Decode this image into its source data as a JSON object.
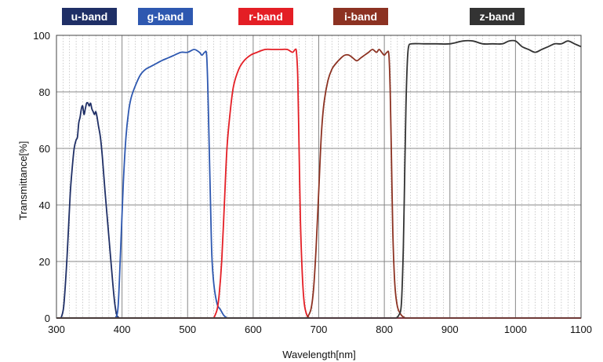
{
  "chart_data": {
    "type": "line",
    "title": "",
    "xlabel": "Wavelength[nm]",
    "ylabel": "Transmittance[%]",
    "xlim": [
      300,
      1100
    ],
    "ylim": [
      0,
      100
    ],
    "x_ticks": [
      300,
      400,
      500,
      600,
      700,
      800,
      900,
      1000,
      1100
    ],
    "y_ticks": [
      0,
      20,
      40,
      60,
      80,
      100
    ],
    "minor_x_step": 10,
    "grid": true,
    "legend_position": "top",
    "series": [
      {
        "name": "u-band",
        "color": "#1f2f66",
        "points": [
          [
            307,
            0
          ],
          [
            311,
            4
          ],
          [
            315,
            17
          ],
          [
            318,
            30
          ],
          [
            321,
            44
          ],
          [
            324,
            53
          ],
          [
            327,
            60
          ],
          [
            330,
            63
          ],
          [
            332,
            64
          ],
          [
            334,
            69
          ],
          [
            336,
            71
          ],
          [
            338,
            74
          ],
          [
            340,
            75
          ],
          [
            342,
            72
          ],
          [
            344,
            74
          ],
          [
            346,
            76
          ],
          [
            348,
            76
          ],
          [
            350,
            75
          ],
          [
            352,
            76
          ],
          [
            354,
            74
          ],
          [
            356,
            73
          ],
          [
            358,
            72
          ],
          [
            360,
            73
          ],
          [
            362,
            71
          ],
          [
            364,
            68
          ],
          [
            367,
            64
          ],
          [
            370,
            57
          ],
          [
            374,
            45
          ],
          [
            378,
            34
          ],
          [
            382,
            23
          ],
          [
            386,
            12
          ],
          [
            389,
            5
          ],
          [
            392,
            1
          ],
          [
            396,
            0
          ]
        ]
      },
      {
        "name": "g-band",
        "color": "#2e58b0",
        "points": [
          [
            390,
            0
          ],
          [
            394,
            4
          ],
          [
            398,
            25
          ],
          [
            402,
            48
          ],
          [
            406,
            64
          ],
          [
            410,
            73
          ],
          [
            414,
            78
          ],
          [
            420,
            82
          ],
          [
            428,
            86
          ],
          [
            436,
            88
          ],
          [
            444,
            89
          ],
          [
            452,
            90
          ],
          [
            460,
            91
          ],
          [
            470,
            92
          ],
          [
            480,
            93
          ],
          [
            490,
            94
          ],
          [
            500,
            94
          ],
          [
            510,
            95
          ],
          [
            518,
            94
          ],
          [
            522,
            93
          ],
          [
            526,
            94
          ],
          [
            529,
            93
          ],
          [
            531,
            80
          ],
          [
            533,
            60
          ],
          [
            535,
            40
          ],
          [
            537,
            22
          ],
          [
            540,
            12
          ],
          [
            545,
            5
          ],
          [
            550,
            3
          ],
          [
            555,
            1
          ],
          [
            560,
            0
          ]
        ]
      },
      {
        "name": "r-band",
        "color": "#e41e25",
        "points": [
          [
            540,
            0
          ],
          [
            545,
            3
          ],
          [
            548,
            8
          ],
          [
            552,
            20
          ],
          [
            556,
            40
          ],
          [
            560,
            60
          ],
          [
            565,
            73
          ],
          [
            570,
            82
          ],
          [
            578,
            88
          ],
          [
            586,
            91
          ],
          [
            596,
            93
          ],
          [
            606,
            94
          ],
          [
            618,
            95
          ],
          [
            630,
            95
          ],
          [
            642,
            95
          ],
          [
            652,
            95
          ],
          [
            660,
            94
          ],
          [
            664,
            95
          ],
          [
            666,
            94
          ],
          [
            668,
            85
          ],
          [
            670,
            60
          ],
          [
            672,
            35
          ],
          [
            675,
            15
          ],
          [
            678,
            5
          ],
          [
            682,
            1
          ],
          [
            686,
            0
          ]
        ]
      },
      {
        "name": "i-band",
        "color": "#8c3222",
        "points": [
          [
            682,
            0
          ],
          [
            688,
            3
          ],
          [
            692,
            10
          ],
          [
            696,
            25
          ],
          [
            700,
            45
          ],
          [
            704,
            65
          ],
          [
            708,
            76
          ],
          [
            714,
            84
          ],
          [
            720,
            88
          ],
          [
            726,
            90
          ],
          [
            734,
            92
          ],
          [
            740,
            93
          ],
          [
            746,
            93
          ],
          [
            752,
            92
          ],
          [
            758,
            91
          ],
          [
            764,
            92
          ],
          [
            770,
            93
          ],
          [
            776,
            94
          ],
          [
            782,
            95
          ],
          [
            788,
            94
          ],
          [
            792,
            95
          ],
          [
            796,
            94
          ],
          [
            800,
            93
          ],
          [
            804,
            94
          ],
          [
            807,
            93
          ],
          [
            809,
            80
          ],
          [
            811,
            55
          ],
          [
            813,
            30
          ],
          [
            816,
            12
          ],
          [
            820,
            4
          ],
          [
            826,
            1
          ],
          [
            832,
            0
          ]
        ]
      },
      {
        "name": "z-band",
        "color": "#333333",
        "points": [
          [
            818,
            0
          ],
          [
            822,
            1
          ],
          [
            826,
            5
          ],
          [
            829,
            25
          ],
          [
            831,
            50
          ],
          [
            833,
            75
          ],
          [
            835,
            90
          ],
          [
            837,
            96
          ],
          [
            842,
            97
          ],
          [
            860,
            97
          ],
          [
            880,
            97
          ],
          [
            900,
            97
          ],
          [
            920,
            98
          ],
          [
            935,
            98
          ],
          [
            950,
            97
          ],
          [
            965,
            97
          ],
          [
            980,
            97
          ],
          [
            990,
            98
          ],
          [
            1000,
            98
          ],
          [
            1010,
            96
          ],
          [
            1020,
            95
          ],
          [
            1030,
            94
          ],
          [
            1040,
            95
          ],
          [
            1050,
            96
          ],
          [
            1060,
            97
          ],
          [
            1070,
            97
          ],
          [
            1080,
            98
          ],
          [
            1090,
            97
          ],
          [
            1100,
            96
          ]
        ]
      }
    ]
  }
}
